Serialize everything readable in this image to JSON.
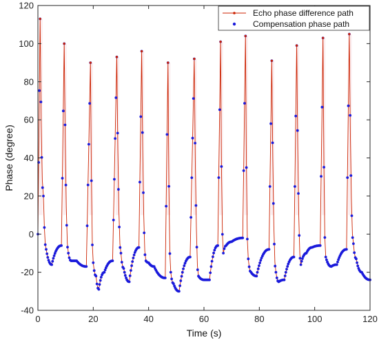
{
  "chart_data": {
    "type": "line",
    "title": "",
    "xlabel": "Time (s)",
    "ylabel": "Phase (degree)",
    "xlim": [
      0,
      120
    ],
    "ylim": [
      -40,
      120
    ],
    "xticks": [
      0,
      20,
      40,
      60,
      80,
      100,
      120
    ],
    "yticks": [
      -40,
      -20,
      0,
      20,
      40,
      60,
      80,
      100,
      120
    ],
    "grid": false,
    "legend": "top-right",
    "colors": {
      "echo": "#cc2200",
      "compensation": "#1a1adb"
    },
    "spike_peaks": [
      {
        "t": 0.8,
        "peak": 113
      },
      {
        "t": 9.5,
        "peak": 100
      },
      {
        "t": 19.0,
        "peak": 90
      },
      {
        "t": 28.5,
        "peak": 93
      },
      {
        "t": 37.5,
        "peak": 96
      },
      {
        "t": 47.0,
        "peak": 90
      },
      {
        "t": 56.5,
        "peak": 92
      },
      {
        "t": 66.0,
        "peak": 101
      },
      {
        "t": 75.0,
        "peak": 104
      },
      {
        "t": 84.5,
        "peak": 91
      },
      {
        "t": 93.5,
        "peak": 99
      },
      {
        "t": 103.0,
        "peak": 103
      },
      {
        "t": 112.5,
        "peak": 105
      }
    ],
    "series": [
      {
        "name": "Echo phase difference path",
        "x": [
          0,
          0.8,
          2,
          3,
          5,
          8.5,
          9.5,
          11,
          12,
          14,
          17.5,
          19,
          20,
          21,
          22,
          24,
          27,
          28.5,
          30,
          31,
          33,
          36.5,
          37.5,
          39,
          40,
          42,
          46,
          47,
          48,
          49,
          51,
          55,
          56.5,
          58,
          60,
          62,
          65,
          66,
          67,
          68,
          70,
          74,
          75,
          76,
          77,
          79,
          83.5,
          84.5,
          86,
          87,
          89,
          92.5,
          93.5,
          95,
          97,
          99,
          102,
          103,
          104,
          106,
          108,
          111.5,
          112.5,
          114,
          115,
          117,
          120
        ],
        "y": [
          0,
          113,
          20,
          -8,
          -16,
          -6,
          100,
          -10,
          -14,
          -14,
          -17,
          90,
          -15,
          -22,
          -29,
          -20,
          -14,
          93,
          -10,
          -18,
          -25,
          -7,
          96,
          -14,
          -15,
          -17,
          -23,
          90,
          -20,
          -26,
          -30,
          -12,
          92,
          -22,
          -24,
          -24,
          -6,
          101,
          -10,
          -6,
          -4,
          -2,
          104,
          -13,
          -20,
          -22,
          -8,
          91,
          -20,
          -25,
          -24,
          -12,
          99,
          -16,
          -10,
          -7,
          -6,
          103,
          -12,
          -17,
          -16,
          -8,
          105,
          -5,
          -13,
          -20,
          -24
        ]
      },
      {
        "name": "Compensation phase path",
        "x": [
          0,
          0.8,
          2,
          3,
          5,
          8.5,
          9.5,
          11,
          12,
          14,
          17.5,
          19,
          20,
          21,
          22,
          24,
          27,
          28.5,
          30,
          31,
          33,
          36.5,
          37.5,
          39,
          40,
          42,
          46,
          47,
          48,
          49,
          51,
          55,
          56.5,
          58,
          60,
          62,
          65,
          66,
          67,
          68,
          70,
          74,
          75,
          76,
          77,
          79,
          83.5,
          84.5,
          86,
          87,
          89,
          92.5,
          93.5,
          95,
          97,
          99,
          102,
          103,
          104,
          106,
          108,
          111.5,
          112.5,
          114,
          115,
          117,
          120
        ],
        "y": [
          0,
          113,
          20,
          -8,
          -16,
          -6,
          100,
          -10,
          -14,
          -14,
          -17,
          90,
          -15,
          -22,
          -29,
          -20,
          -14,
          93,
          -10,
          -18,
          -25,
          -7,
          96,
          -14,
          -15,
          -17,
          -23,
          90,
          -20,
          -26,
          -30,
          -12,
          92,
          -22,
          -24,
          -24,
          -6,
          101,
          -10,
          -6,
          -4,
          -2,
          104,
          -13,
          -20,
          -22,
          -8,
          91,
          -20,
          -25,
          -24,
          -12,
          99,
          -16,
          -10,
          -7,
          -6,
          103,
          -12,
          -17,
          -16,
          -8,
          105,
          -5,
          -13,
          -20,
          -24
        ]
      }
    ]
  }
}
